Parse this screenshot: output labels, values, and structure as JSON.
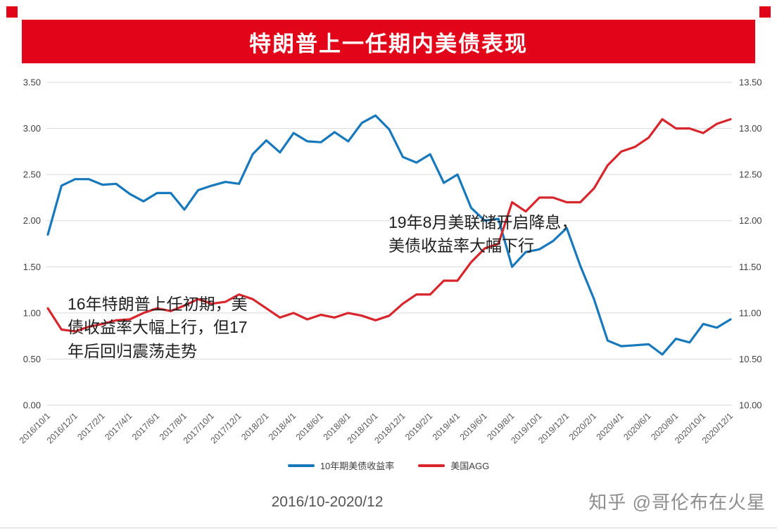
{
  "title": "特朗普上一任期内美债表现",
  "annotations": {
    "rate_cut": "19年8月美联储开启降息，\n美债收益率大幅下行",
    "trump_initial": "16年特朗普上任初期，美\n债收益率大幅上行，但17\n年后回归震荡走势"
  },
  "footer": {
    "range": "2016/10-2020/12",
    "watermark": "知乎 @哥伦布在火星"
  },
  "colors": {
    "banner_red": "#e2051a",
    "blue_line": "#1878bc",
    "red_line": "#d7262c",
    "gridline": "#d9d9d9",
    "axis_text": "#404040",
    "x_label_text": "#595959"
  },
  "chart_data": {
    "type": "line",
    "title": "特朗普上一任期内美债表现",
    "grid": "horizontal",
    "legend_position": "bottom",
    "n_points": 51,
    "ylim_left": [
      0,
      3.5
    ],
    "ylim_right": [
      10,
      13.5
    ],
    "left_ticks": [
      "3.50",
      "3.00",
      "2.50",
      "2.00",
      "1.50",
      "1.00",
      "0.50",
      "0.00"
    ],
    "right_ticks": [
      "13.50",
      "13.00",
      "12.50",
      "12.00",
      "11.50",
      "11.00",
      "10.50",
      "10.00"
    ],
    "x_labels": [
      "2016/10/1",
      "2016/12/1",
      "2017/2/1",
      "2017/4/1",
      "2017/6/1",
      "2017/8/1",
      "2017/10/1",
      "2017/12/1",
      "2018/2/1",
      "2018/4/1",
      "2018/6/1",
      "2018/8/1",
      "2018/10/1",
      "2018/12/1",
      "2019/2/1",
      "2019/4/1",
      "2019/6/1",
      "2019/8/1",
      "2019/10/1",
      "2019/12/1",
      "2020/2/1",
      "2020/4/1",
      "2020/6/1",
      "2020/8/1",
      "2020/10/1",
      "2020/12/1"
    ],
    "x_label_step": 2,
    "series": [
      {
        "name": "10年期美债收益率",
        "axis": "left",
        "color": "#1878bc",
        "values": [
          1.85,
          2.38,
          2.45,
          2.45,
          2.39,
          2.4,
          2.29,
          2.21,
          2.3,
          2.3,
          2.12,
          2.33,
          2.38,
          2.42,
          2.4,
          2.72,
          2.87,
          2.74,
          2.95,
          2.86,
          2.85,
          2.96,
          2.86,
          3.06,
          3.14,
          2.99,
          2.69,
          2.63,
          2.72,
          2.41,
          2.5,
          2.14,
          2.0,
          2.02,
          1.5,
          1.66,
          1.69,
          1.78,
          1.92,
          1.51,
          1.15,
          0.7,
          0.64,
          0.65,
          0.66,
          0.55,
          0.72,
          0.68,
          0.88,
          0.84,
          0.93
        ]
      },
      {
        "name": "美国AGG",
        "axis": "right",
        "color": "#d7262c",
        "values": [
          11.05,
          10.82,
          10.8,
          10.85,
          10.88,
          10.92,
          10.93,
          11.0,
          11.05,
          11.02,
          11.08,
          11.15,
          11.1,
          11.12,
          11.2,
          11.15,
          11.05,
          10.95,
          11.0,
          10.93,
          10.98,
          10.95,
          11.0,
          10.97,
          10.92,
          10.97,
          11.1,
          11.2,
          11.2,
          11.35,
          11.35,
          11.55,
          11.7,
          11.75,
          12.2,
          12.1,
          12.25,
          12.25,
          12.2,
          12.2,
          12.35,
          12.6,
          12.75,
          12.8,
          12.9,
          13.1,
          13.0,
          13.0,
          12.95,
          13.05,
          13.1
        ]
      }
    ]
  }
}
